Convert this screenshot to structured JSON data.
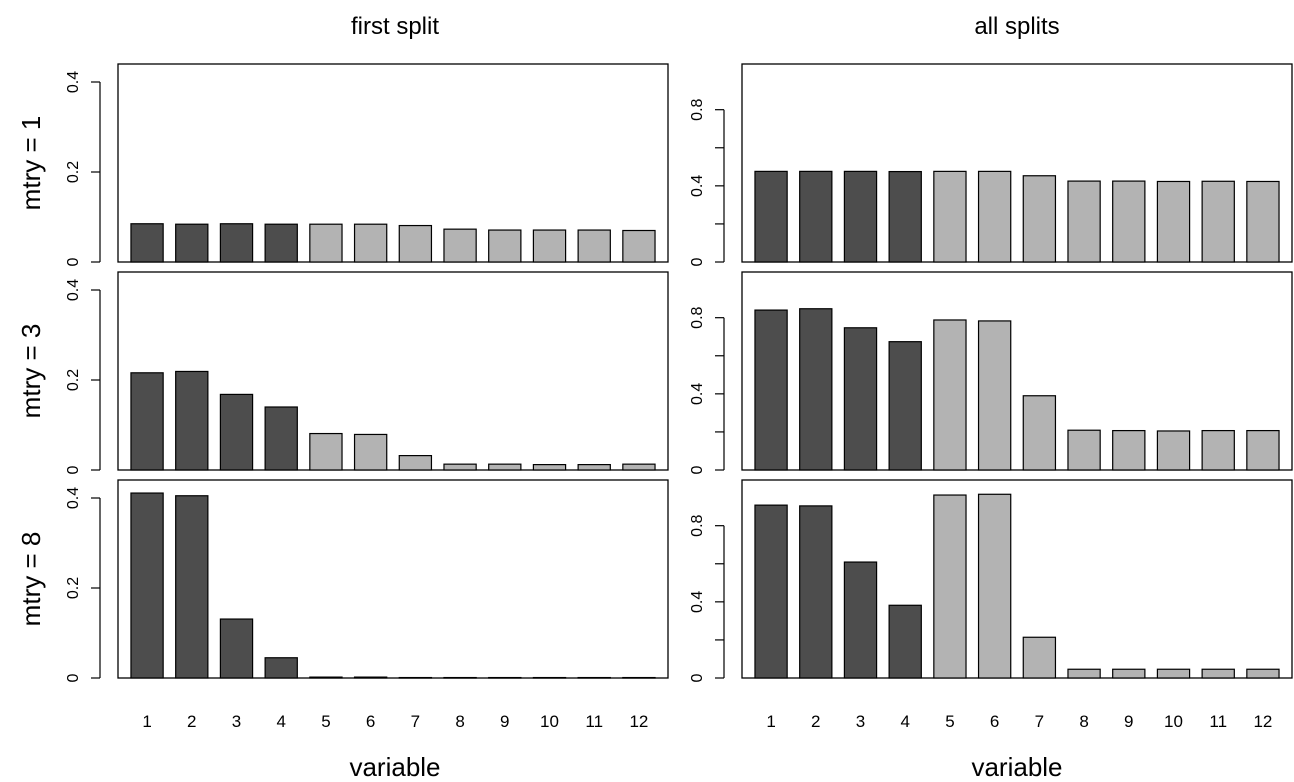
{
  "column_titles": [
    "first split",
    "all splits"
  ],
  "row_labels": [
    "mtry = 1",
    "mtry = 3",
    "mtry = 8"
  ],
  "xlabel": "variable",
  "colors": {
    "dark": "#4d4d4d",
    "light": "#b3b3b3",
    "border": "#000000"
  },
  "chart_data": [
    {
      "type": "bar",
      "panel": "first split / mtry = 1",
      "categories": [
        "1",
        "2",
        "3",
        "4",
        "5",
        "6",
        "7",
        "8",
        "9",
        "10",
        "11",
        "12"
      ],
      "values": [
        0.085,
        0.084,
        0.085,
        0.084,
        0.084,
        0.084,
        0.081,
        0.073,
        0.071,
        0.071,
        0.071,
        0.07
      ],
      "bar_colors": [
        "dark",
        "dark",
        "dark",
        "dark",
        "light",
        "light",
        "light",
        "light",
        "light",
        "light",
        "light",
        "light"
      ],
      "ylim": [
        0,
        0.44
      ],
      "yticks": [
        0,
        0.2,
        0.4
      ],
      "ytick_labels": [
        "0",
        "0.2",
        "0.4"
      ]
    },
    {
      "type": "bar",
      "panel": "all splits / mtry = 1",
      "categories": [
        "1",
        "2",
        "3",
        "4",
        "5",
        "6",
        "7",
        "8",
        "9",
        "10",
        "11",
        "12"
      ],
      "values": [
        0.476,
        0.476,
        0.476,
        0.475,
        0.476,
        0.476,
        0.453,
        0.425,
        0.425,
        0.423,
        0.424,
        0.423
      ],
      "bar_colors": [
        "dark",
        "dark",
        "dark",
        "dark",
        "light",
        "light",
        "light",
        "light",
        "light",
        "light",
        "light",
        "light"
      ],
      "ylim": [
        0,
        1.04
      ],
      "yticks": [
        0,
        0.4,
        0.8
      ],
      "ytick_labels": [
        "0",
        "0.4",
        "0.8"
      ],
      "minor_yticks": [
        0.2,
        0.6
      ]
    },
    {
      "type": "bar",
      "panel": "first split / mtry = 3",
      "categories": [
        "1",
        "2",
        "3",
        "4",
        "5",
        "6",
        "7",
        "8",
        "9",
        "10",
        "11",
        "12"
      ],
      "values": [
        0.216,
        0.219,
        0.168,
        0.14,
        0.081,
        0.079,
        0.032,
        0.013,
        0.013,
        0.012,
        0.012,
        0.013
      ],
      "bar_colors": [
        "dark",
        "dark",
        "dark",
        "dark",
        "light",
        "light",
        "light",
        "light",
        "light",
        "light",
        "light",
        "light"
      ],
      "ylim": [
        0,
        0.44
      ],
      "yticks": [
        0,
        0.2,
        0.4
      ],
      "ytick_labels": [
        "0",
        "0.2",
        "0.4"
      ]
    },
    {
      "type": "bar",
      "panel": "all splits / mtry = 3",
      "categories": [
        "1",
        "2",
        "3",
        "4",
        "5",
        "6",
        "7",
        "8",
        "9",
        "10",
        "11",
        "12"
      ],
      "values": [
        0.84,
        0.847,
        0.747,
        0.674,
        0.788,
        0.783,
        0.39,
        0.209,
        0.207,
        0.205,
        0.207,
        0.207
      ],
      "bar_colors": [
        "dark",
        "dark",
        "dark",
        "dark",
        "light",
        "light",
        "light",
        "light",
        "light",
        "light",
        "light",
        "light"
      ],
      "ylim": [
        0,
        1.04
      ],
      "yticks": [
        0,
        0.4,
        0.8
      ],
      "ytick_labels": [
        "0",
        "0.4",
        "0.8"
      ],
      "minor_yticks": [
        0.2,
        0.6
      ]
    },
    {
      "type": "bar",
      "panel": "first split / mtry = 8",
      "categories": [
        "1",
        "2",
        "3",
        "4",
        "5",
        "6",
        "7",
        "8",
        "9",
        "10",
        "11",
        "12"
      ],
      "values": [
        0.411,
        0.405,
        0.131,
        0.045,
        0.002,
        0.002,
        0.001,
        0.001,
        0.001,
        0.001,
        0.001,
        0.001
      ],
      "bar_colors": [
        "dark",
        "dark",
        "dark",
        "dark",
        "light",
        "light",
        "light",
        "light",
        "light",
        "light",
        "light",
        "light"
      ],
      "ylim": [
        0,
        0.44
      ],
      "yticks": [
        0,
        0.2,
        0.4
      ],
      "ytick_labels": [
        "0",
        "0.2",
        "0.4"
      ]
    },
    {
      "type": "bar",
      "panel": "all splits / mtry = 8",
      "categories": [
        "1",
        "2",
        "3",
        "4",
        "5",
        "6",
        "7",
        "8",
        "9",
        "10",
        "11",
        "12"
      ],
      "values": [
        0.908,
        0.904,
        0.609,
        0.382,
        0.961,
        0.965,
        0.214,
        0.046,
        0.046,
        0.046,
        0.046,
        0.046
      ],
      "bar_colors": [
        "dark",
        "dark",
        "dark",
        "dark",
        "light",
        "light",
        "light",
        "light",
        "light",
        "light",
        "light",
        "light"
      ],
      "ylim": [
        0,
        1.04
      ],
      "yticks": [
        0,
        0.4,
        0.8
      ],
      "ytick_labels": [
        "0",
        "0.4",
        "0.8"
      ],
      "minor_yticks": [
        0.2,
        0.6
      ]
    }
  ]
}
